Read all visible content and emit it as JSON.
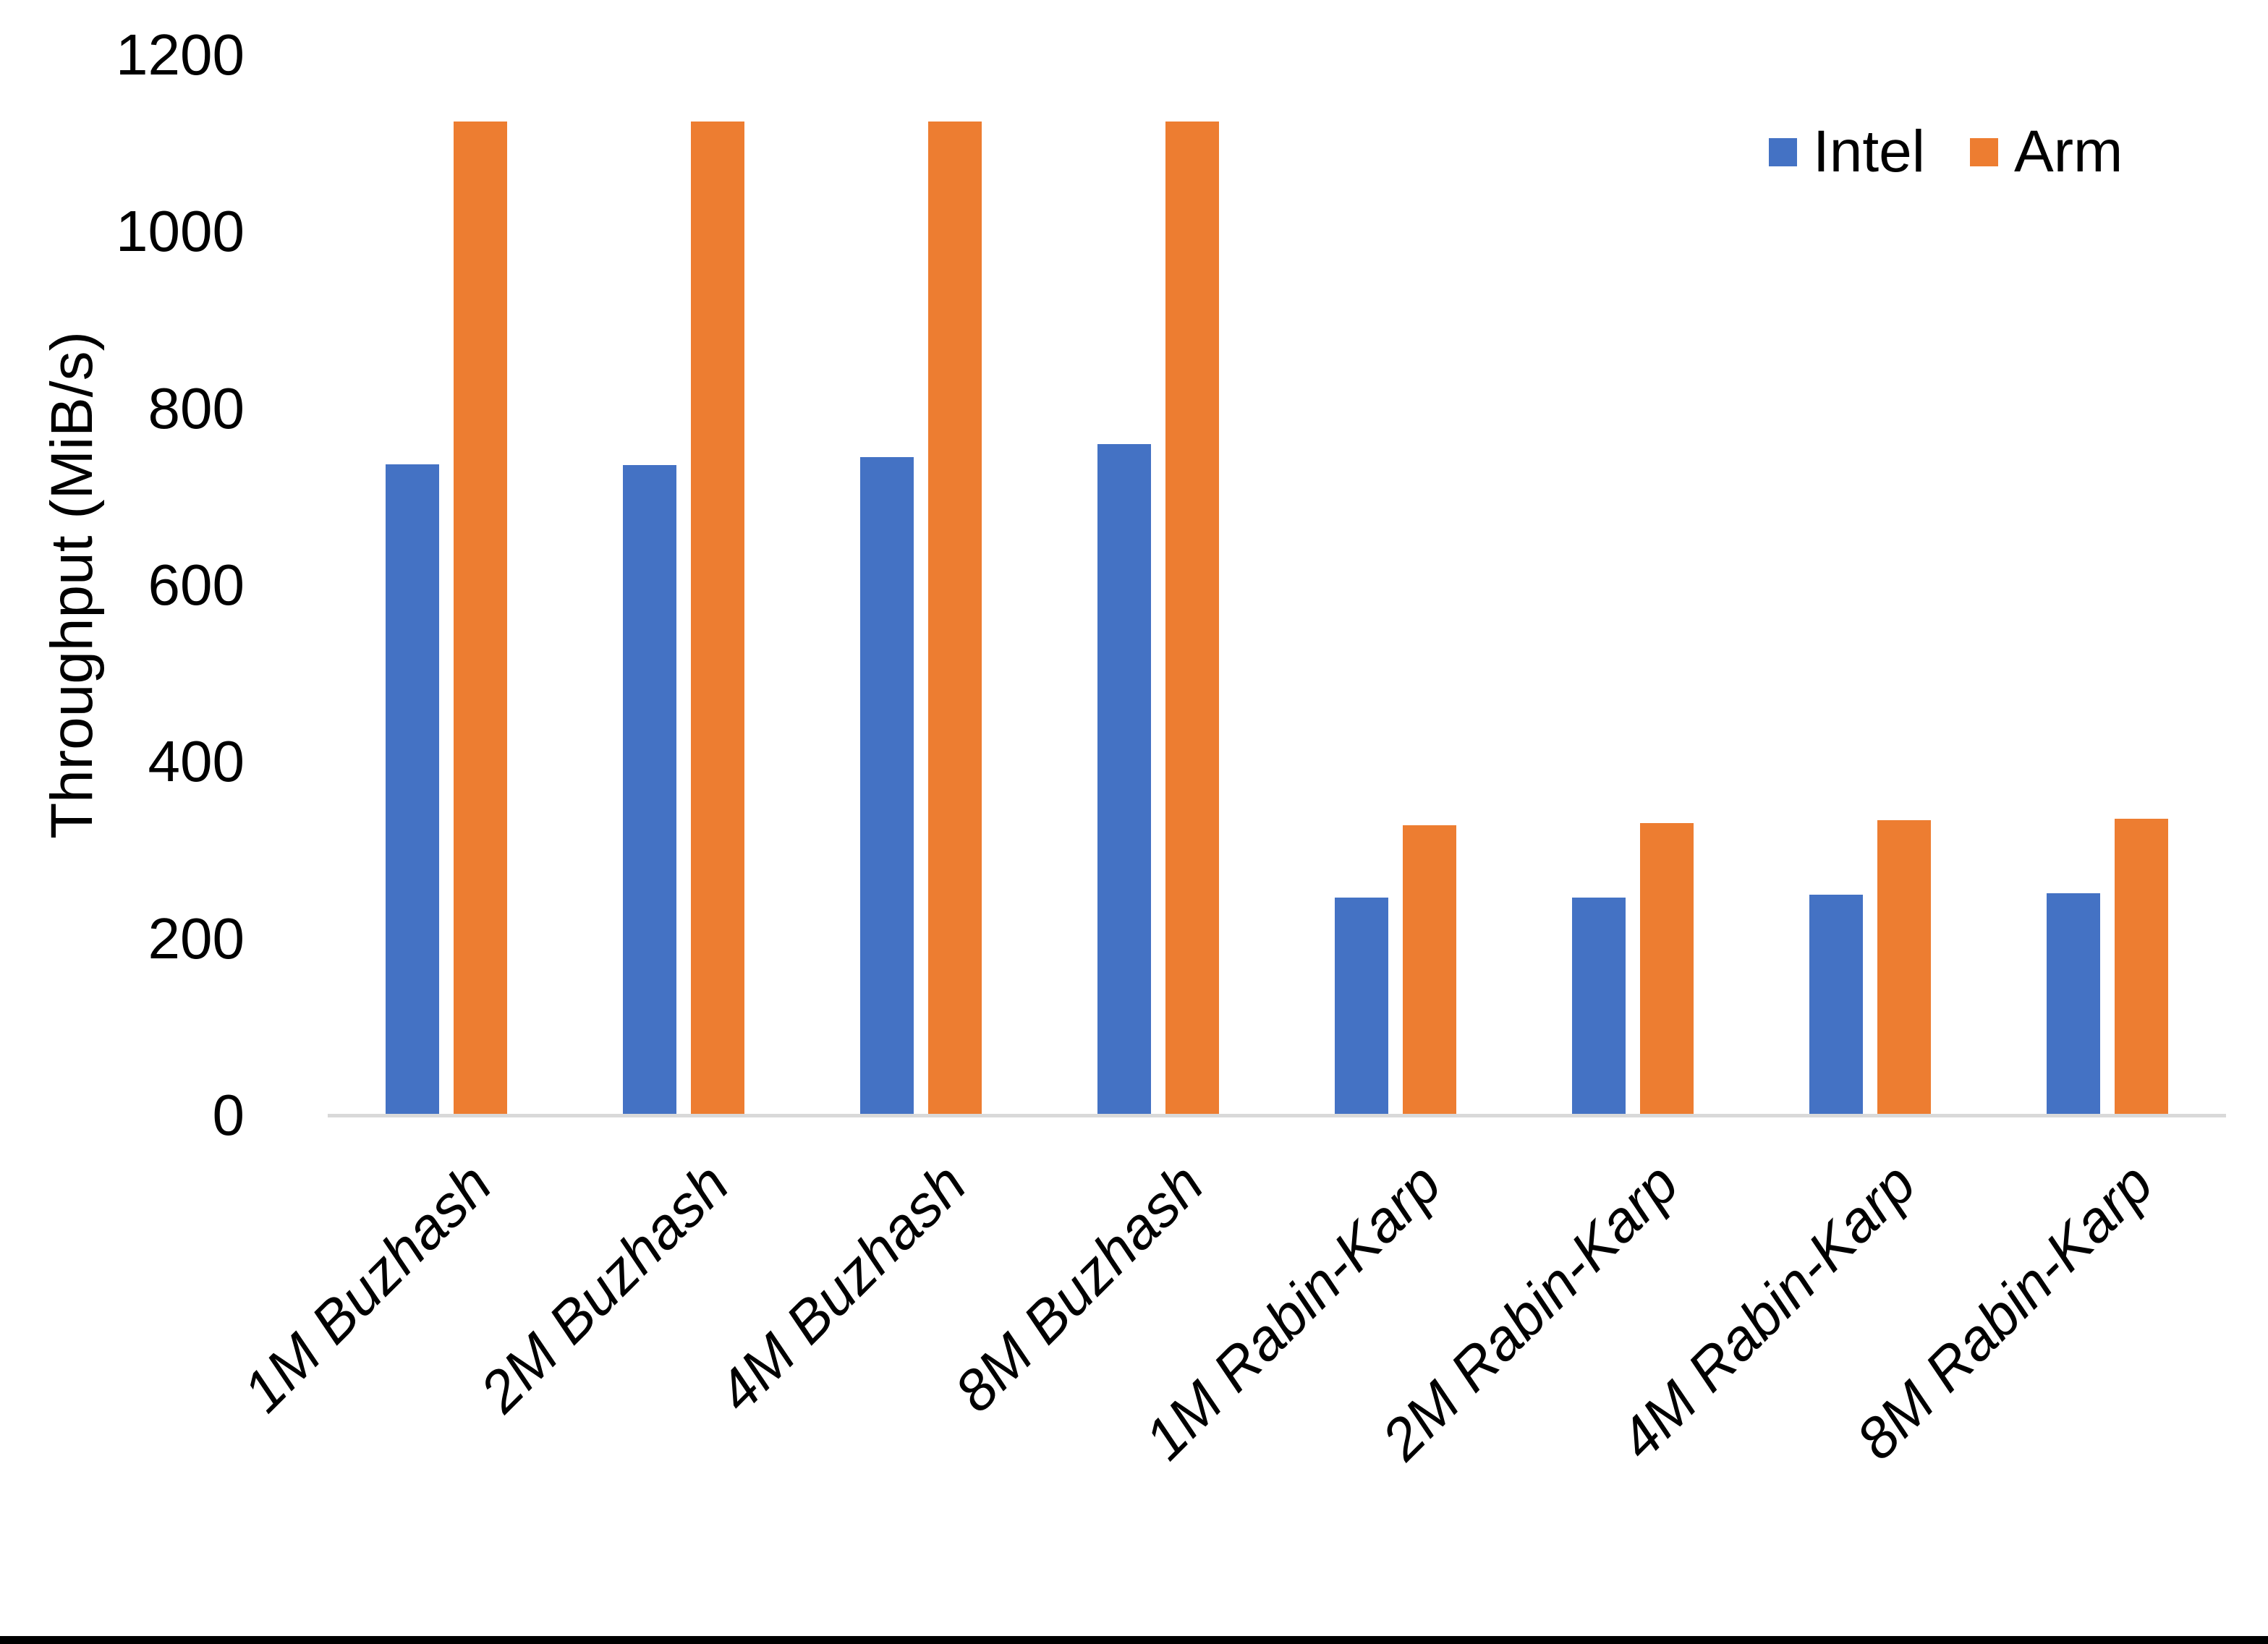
{
  "chart_data": {
    "type": "bar",
    "title": "",
    "categories": [
      "1M Buzhash",
      "2M Buzhash",
      "4M Buzhash",
      "8M Buzhash",
      "1M Rabin-Karp",
      "2M Rabin-Karp",
      "4M Rabin-Karp",
      "8M Rabin-Karp"
    ],
    "series": [
      {
        "name": "Intel",
        "color": "#4472C4",
        "values": [
          737,
          736,
          745,
          760,
          246,
          246,
          250,
          251
        ]
      },
      {
        "name": "Arm",
        "color": "#ED7D31",
        "values": [
          1125,
          1125,
          1125,
          1125,
          328,
          331,
          334,
          336
        ]
      }
    ],
    "xlabel": "",
    "ylabel": "Throughput (MiB/s)",
    "ylim": [
      0,
      1200
    ],
    "y_ticks": [
      0,
      200,
      400,
      600,
      800,
      1000,
      1200
    ],
    "grid": false,
    "legend_position": "top-right",
    "axis_line_color": "#D9D9D9",
    "text_color": "#000000"
  }
}
